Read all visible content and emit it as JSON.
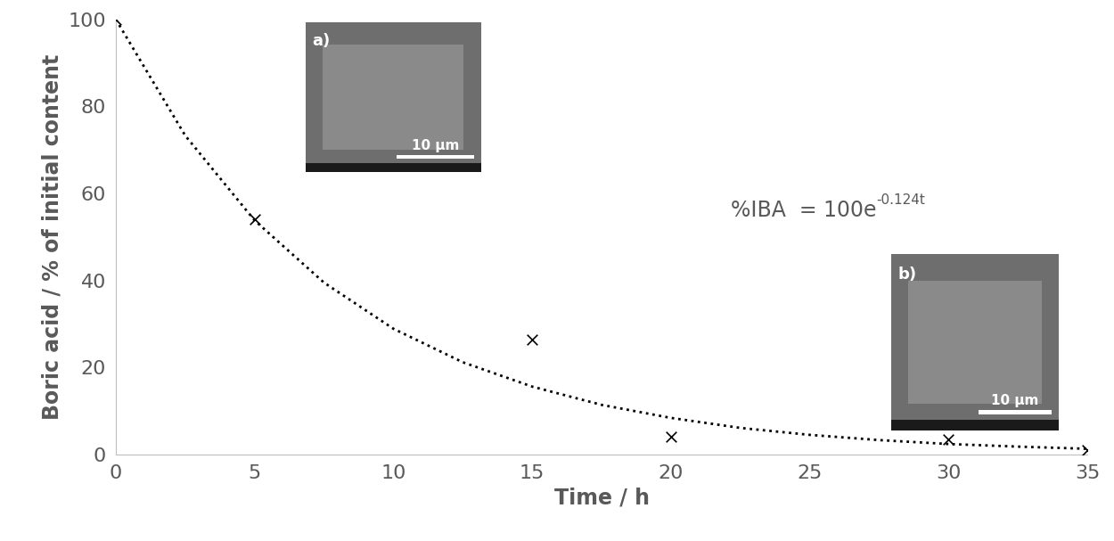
{
  "chart_data": {
    "type": "scatter",
    "x_label": "Time / h",
    "y_label": "Boric acid / % of initial content",
    "series": [
      {
        "type": "scatter",
        "color": "#000000",
        "marker": "x",
        "x": [
          0,
          5,
          15,
          20,
          30,
          35
        ],
        "values": [
          100,
          54,
          26.5,
          4,
          3.5,
          1
        ]
      },
      {
        "type": "line",
        "color": "#000000",
        "line_style": "dotted",
        "x": [
          0,
          2.5,
          5,
          7.5,
          10,
          12.5,
          15,
          17.5,
          20,
          22.5,
          25,
          27.5,
          30,
          32.5,
          35
        ],
        "values": [
          100,
          73.3,
          53.8,
          39.5,
          28.9,
          21.2,
          15.6,
          11.4,
          8.4,
          6.1,
          4.5,
          3.3,
          2.4,
          1.8,
          1.3
        ]
      }
    ],
    "xlim": [
      0,
      35
    ],
    "xticks": [
      0,
      5,
      10,
      15,
      20,
      25,
      30,
      35
    ],
    "ylim": [
      0,
      100
    ],
    "yticks": [
      0,
      20,
      40,
      60,
      80,
      100
    ],
    "grid": false,
    "equation": {
      "text": "%IBA  = 100e",
      "superscript": "-0.124t"
    },
    "insets": [
      {
        "label": "a)",
        "scale_bar": "10 μm"
      },
      {
        "label": "b)",
        "scale_bar": "10 μm"
      }
    ]
  }
}
